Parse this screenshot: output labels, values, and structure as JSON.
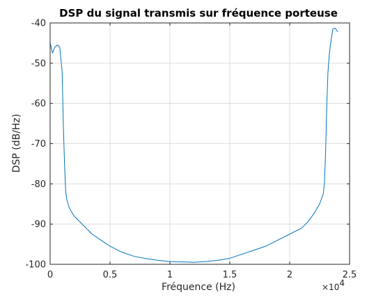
{
  "chart_data": {
    "type": "line",
    "title": "DSP du signal transmis sur fréquence porteuse",
    "xlabel": "Fréquence (Hz)",
    "ylabel": "DSP (dB/Hz)",
    "x_exponent_base": "×10",
    "x_exponent_power": "4",
    "xlim": [
      0,
      25000
    ],
    "ylim": [
      -100,
      -40
    ],
    "grid": true,
    "xticks": [
      0,
      5000,
      10000,
      15000,
      20000,
      25000
    ],
    "xtick_labels": [
      "0",
      "0.5",
      "1",
      "1.5",
      "2",
      "2.5"
    ],
    "yticks": [
      -100,
      -90,
      -80,
      -70,
      -60,
      -50,
      -40
    ],
    "ytick_labels": [
      "-100",
      "-90",
      "-80",
      "-70",
      "-60",
      "-50",
      "-40"
    ],
    "line_color": "#0072bd",
    "series": [
      {
        "x": [
          0,
          200,
          400,
          600,
          800,
          1000,
          1100,
          1200,
          1300,
          1400,
          1600,
          1800,
          2000,
          2500,
          3000,
          3500,
          4000,
          4500,
          5000,
          6000,
          7000,
          8000,
          9000,
          10000,
          11000,
          12000,
          13000,
          14000,
          15000,
          16000,
          17000,
          18000,
          19000,
          20000,
          21000,
          21500,
          22000,
          22500,
          22800,
          22900,
          23000,
          23100,
          23200,
          23300,
          23400,
          23500,
          23600,
          23800,
          24000
        ],
        "y": [
          -45,
          -47.5,
          -46,
          -45.5,
          -46,
          -52,
          -65,
          -75,
          -82,
          -84,
          -86,
          -87,
          -88,
          -89.5,
          -91,
          -92.5,
          -93.5,
          -94.5,
          -95.5,
          -97,
          -98,
          -98.6,
          -99,
          -99.3,
          -99.4,
          -99.5,
          -99.3,
          -99,
          -98.5,
          -97.5,
          -96.5,
          -95.5,
          -94,
          -92.5,
          -91,
          -89.5,
          -87.5,
          -85,
          -82.5,
          -80,
          -72,
          -60,
          -52,
          -48,
          -45.5,
          -43.5,
          -41.5,
          -41.3,
          -42.2
        ]
      }
    ]
  }
}
